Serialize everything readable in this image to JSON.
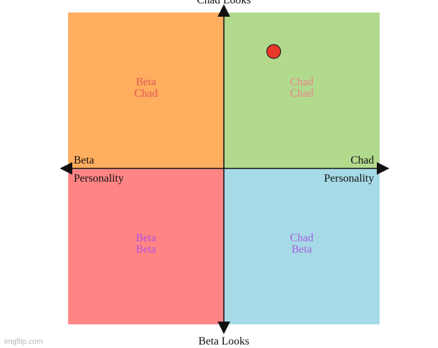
{
  "chart_data": {
    "type": "scatter",
    "axes": {
      "top": "Chad Looks",
      "bottom": "Beta Looks",
      "left": [
        "Beta",
        "Personality"
      ],
      "right": [
        "Chad",
        "Personality"
      ]
    },
    "xlim": [
      -1,
      1
    ],
    "ylim": [
      -1,
      1
    ],
    "quadrants": [
      {
        "id": "top-left",
        "lines": [
          "Beta",
          "Chad"
        ],
        "fill": "#ffad5e",
        "text_color": "#e05a5a"
      },
      {
        "id": "top-right",
        "lines": [
          "Chad",
          "Chad"
        ],
        "fill": "#b2da8d",
        "text_color": "#e8848a"
      },
      {
        "id": "bottom-left",
        "lines": [
          "Beta",
          "Beta"
        ],
        "fill": "#ff8585",
        "text_color": "#b14ee6"
      },
      {
        "id": "bottom-right",
        "lines": [
          "Chad",
          "Beta"
        ],
        "fill": "#a6dae6",
        "text_color": "#a45ee0"
      }
    ],
    "points": [
      {
        "x": 0.32,
        "y": 0.75,
        "color": "#e8392a"
      }
    ]
  },
  "watermark": "imgflip.com"
}
